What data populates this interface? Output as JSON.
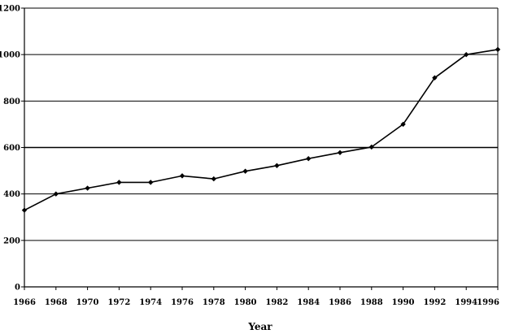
{
  "chart_data": {
    "type": "line",
    "title": "",
    "xlabel": "Year",
    "ylabel": "",
    "xlim": [
      1966,
      1996
    ],
    "ylim": [
      0,
      1200
    ],
    "x_ticks": [
      1966,
      1968,
      1970,
      1972,
      1974,
      1976,
      1978,
      1980,
      1982,
      1984,
      1986,
      1988,
      1990,
      1992,
      1994,
      1996
    ],
    "y_ticks": [
      0,
      200,
      400,
      600,
      800,
      1000,
      1200
    ],
    "grid": true,
    "legend": "none",
    "series": [
      {
        "x": [
          1966,
          1968,
          1970,
          1972,
          1974,
          1976,
          1978,
          1980,
          1982,
          1984,
          1986,
          1988,
          1990,
          1992,
          1994,
          1996
        ],
        "values": [
          330,
          400,
          425,
          450,
          450,
          478,
          465,
          498,
          522,
          552,
          578,
          602,
          700,
          900,
          1000,
          1022
        ],
        "color": "#000000"
      }
    ]
  }
}
